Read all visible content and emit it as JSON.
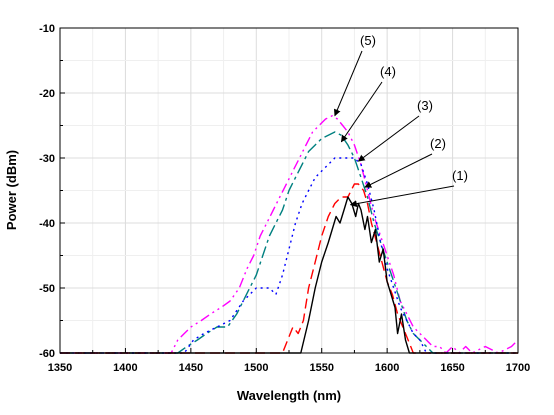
{
  "chart_data": {
    "type": "line",
    "title": "",
    "xlabel": "Wavelength (nm)",
    "ylabel": "Power (dBm)",
    "xlim": [
      1350,
      1700
    ],
    "ylim": [
      -60,
      -10
    ],
    "xticks": [
      1350,
      1400,
      1450,
      1500,
      1550,
      1600,
      1650,
      1700
    ],
    "yticks": [
      -60,
      -50,
      -40,
      -30,
      -20,
      -10
    ],
    "grid": true,
    "legend": "none",
    "series": [
      {
        "label": "(1)",
        "color": "#000000",
        "dash": "solid",
        "annotation_point": [
          1572,
          -37.2
        ],
        "points": [
          [
            1350,
            -60
          ],
          [
            1534,
            -60
          ],
          [
            1540,
            -55
          ],
          [
            1545,
            -50
          ],
          [
            1550,
            -46
          ],
          [
            1555,
            -43
          ],
          [
            1558,
            -41
          ],
          [
            1561,
            -39
          ],
          [
            1564,
            -40
          ],
          [
            1567,
            -38
          ],
          [
            1570,
            -36
          ],
          [
            1573,
            -37
          ],
          [
            1576,
            -39
          ],
          [
            1578,
            -37
          ],
          [
            1580,
            -38
          ],
          [
            1583,
            -41
          ],
          [
            1585,
            -39
          ],
          [
            1588,
            -43
          ],
          [
            1591,
            -41
          ],
          [
            1594,
            -46
          ],
          [
            1597,
            -44
          ],
          [
            1600,
            -49
          ],
          [
            1603,
            -51
          ],
          [
            1606,
            -53
          ],
          [
            1608,
            -57
          ],
          [
            1611,
            -54
          ],
          [
            1614,
            -58
          ],
          [
            1617,
            -60
          ],
          [
            1700,
            -60
          ]
        ]
      },
      {
        "label": "(2)",
        "color": "#ff0000",
        "dash": "10 5",
        "annotation_point": [
          1583,
          -34.5
        ],
        "points": [
          [
            1350,
            -60
          ],
          [
            1520,
            -60
          ],
          [
            1524,
            -58
          ],
          [
            1528,
            -56
          ],
          [
            1532,
            -57
          ],
          [
            1536,
            -55
          ],
          [
            1540,
            -50
          ],
          [
            1545,
            -46
          ],
          [
            1550,
            -42
          ],
          [
            1555,
            -39
          ],
          [
            1560,
            -37
          ],
          [
            1565,
            -36
          ],
          [
            1570,
            -36
          ],
          [
            1575,
            -34
          ],
          [
            1578,
            -34
          ],
          [
            1582,
            -35
          ],
          [
            1585,
            -37
          ],
          [
            1588,
            -40
          ],
          [
            1592,
            -43
          ],
          [
            1596,
            -46
          ],
          [
            1600,
            -49
          ],
          [
            1604,
            -51
          ],
          [
            1608,
            -54
          ],
          [
            1612,
            -56
          ],
          [
            1616,
            -58
          ],
          [
            1620,
            -60
          ],
          [
            1700,
            -60
          ]
        ]
      },
      {
        "label": "(3)",
        "color": "#0000ff",
        "dash": "2 4",
        "annotation_point": [
          1578,
          -30.5
        ],
        "points": [
          [
            1350,
            -60
          ],
          [
            1445,
            -60
          ],
          [
            1452,
            -58
          ],
          [
            1460,
            -57
          ],
          [
            1470,
            -56
          ],
          [
            1480,
            -55
          ],
          [
            1490,
            -52
          ],
          [
            1500,
            -50
          ],
          [
            1510,
            -50
          ],
          [
            1515,
            -51
          ],
          [
            1520,
            -48
          ],
          [
            1525,
            -44
          ],
          [
            1530,
            -40
          ],
          [
            1535,
            -37
          ],
          [
            1540,
            -35
          ],
          [
            1545,
            -33
          ],
          [
            1550,
            -32
          ],
          [
            1555,
            -31
          ],
          [
            1560,
            -30
          ],
          [
            1565,
            -30
          ],
          [
            1570,
            -30
          ],
          [
            1575,
            -30
          ],
          [
            1580,
            -31
          ],
          [
            1585,
            -34
          ],
          [
            1590,
            -38
          ],
          [
            1595,
            -43
          ],
          [
            1600,
            -47
          ],
          [
            1605,
            -50
          ],
          [
            1610,
            -53
          ],
          [
            1615,
            -55
          ],
          [
            1620,
            -57
          ],
          [
            1625,
            -58
          ],
          [
            1630,
            -60
          ],
          [
            1700,
            -60
          ]
        ]
      },
      {
        "label": "(4)",
        "color": "#008080",
        "dash": "12 4 3 4",
        "annotation_point": [
          1565,
          -27.5
        ],
        "points": [
          [
            1350,
            -60
          ],
          [
            1440,
            -60
          ],
          [
            1447,
            -59
          ],
          [
            1455,
            -58
          ],
          [
            1462,
            -57
          ],
          [
            1470,
            -56
          ],
          [
            1478,
            -56
          ],
          [
            1485,
            -54
          ],
          [
            1490,
            -52
          ],
          [
            1495,
            -50
          ],
          [
            1500,
            -48
          ],
          [
            1505,
            -45
          ],
          [
            1510,
            -42
          ],
          [
            1515,
            -40
          ],
          [
            1520,
            -38
          ],
          [
            1525,
            -35
          ],
          [
            1530,
            -33
          ],
          [
            1535,
            -31
          ],
          [
            1540,
            -29
          ],
          [
            1545,
            -28
          ],
          [
            1550,
            -27
          ],
          [
            1555,
            -26.5
          ],
          [
            1560,
            -26
          ],
          [
            1565,
            -26.5
          ],
          [
            1570,
            -28
          ],
          [
            1575,
            -30
          ],
          [
            1580,
            -33
          ],
          [
            1585,
            -36
          ],
          [
            1590,
            -40
          ],
          [
            1595,
            -43
          ],
          [
            1600,
            -46
          ],
          [
            1605,
            -49
          ],
          [
            1610,
            -52
          ],
          [
            1615,
            -55
          ],
          [
            1620,
            -57
          ],
          [
            1625,
            -58
          ],
          [
            1630,
            -59
          ],
          [
            1635,
            -60
          ],
          [
            1700,
            -60
          ]
        ]
      },
      {
        "label": "(5)",
        "color": "#ff00ff",
        "dash": "10 4 2 4 2 4",
        "annotation_point": [
          1560,
          -23.5
        ],
        "points": [
          [
            1350,
            -60
          ],
          [
            1435,
            -60
          ],
          [
            1440,
            -58
          ],
          [
            1445,
            -57
          ],
          [
            1450,
            -56
          ],
          [
            1458,
            -55
          ],
          [
            1465,
            -54
          ],
          [
            1473,
            -53
          ],
          [
            1480,
            -52
          ],
          [
            1487,
            -50
          ],
          [
            1493,
            -47
          ],
          [
            1498,
            -45
          ],
          [
            1503,
            -42
          ],
          [
            1508,
            -40
          ],
          [
            1513,
            -38
          ],
          [
            1518,
            -36
          ],
          [
            1523,
            -34
          ],
          [
            1528,
            -32
          ],
          [
            1533,
            -30
          ],
          [
            1538,
            -28
          ],
          [
            1543,
            -26
          ],
          [
            1548,
            -25
          ],
          [
            1553,
            -24
          ],
          [
            1558,
            -23.5
          ],
          [
            1562,
            -24
          ],
          [
            1566,
            -25
          ],
          [
            1570,
            -26
          ],
          [
            1575,
            -28
          ],
          [
            1580,
            -31
          ],
          [
            1585,
            -35
          ],
          [
            1590,
            -39
          ],
          [
            1595,
            -42
          ],
          [
            1600,
            -45
          ],
          [
            1605,
            -48
          ],
          [
            1610,
            -52
          ],
          [
            1615,
            -54
          ],
          [
            1620,
            -56
          ],
          [
            1625,
            -57
          ],
          [
            1630,
            -58
          ],
          [
            1635,
            -59
          ],
          [
            1640,
            -59
          ],
          [
            1645,
            -60
          ],
          [
            1650,
            -59
          ],
          [
            1655,
            -60
          ],
          [
            1660,
            -59
          ],
          [
            1665,
            -60
          ],
          [
            1675,
            -59
          ],
          [
            1685,
            -60
          ],
          [
            1695,
            -59
          ],
          [
            1700,
            -58
          ]
        ]
      }
    ]
  }
}
